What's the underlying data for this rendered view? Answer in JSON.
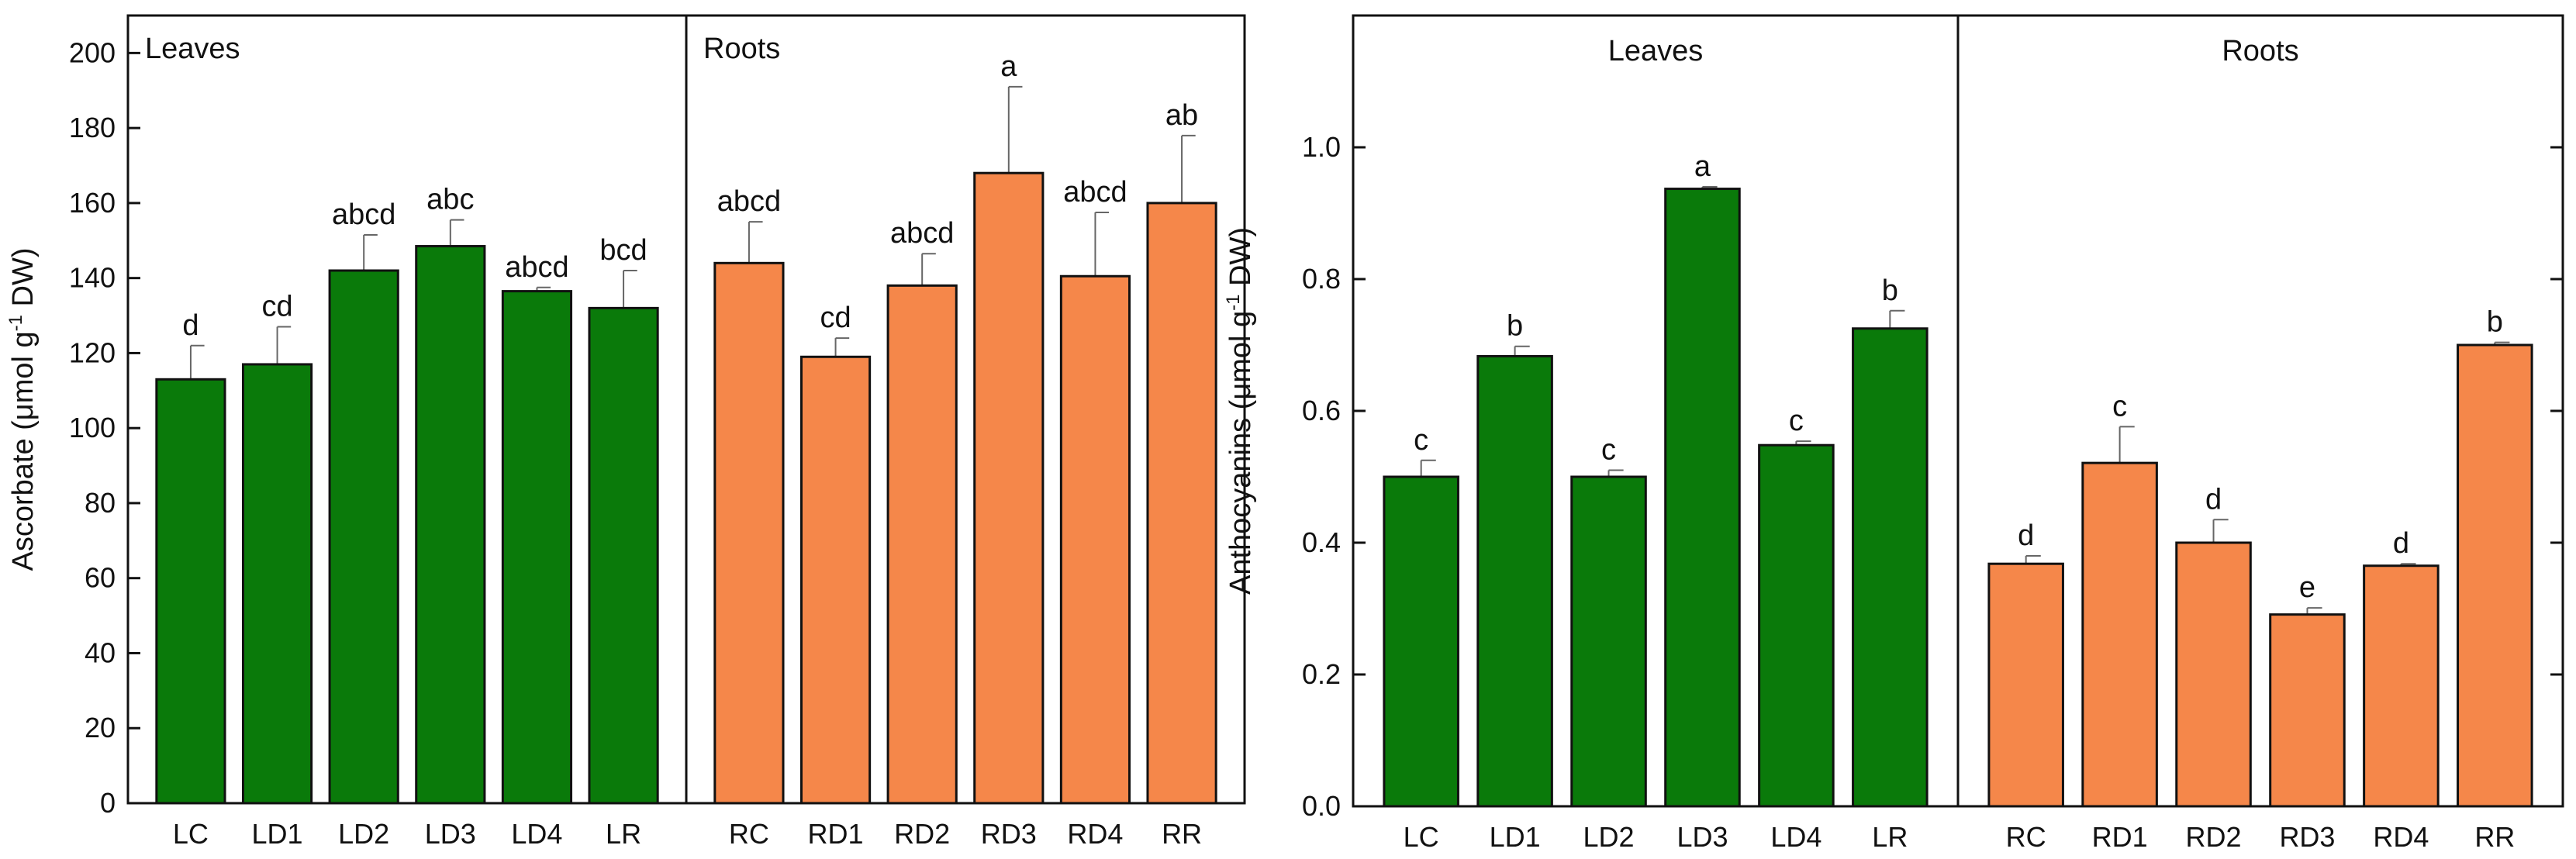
{
  "chart_data": [
    {
      "type": "bar",
      "ylabel": "Ascorbate (μmol g⁻¹ DW)",
      "ylabel_parts": {
        "before": "Ascorbate (μmol g",
        "superscript": "-1",
        "after": " DW)"
      },
      "ylim": [
        0,
        210
      ],
      "yticks": [
        0,
        20,
        40,
        60,
        80,
        100,
        120,
        140,
        160,
        180,
        200
      ],
      "ytick_labels": [
        "0",
        "20",
        "40",
        "60",
        "80",
        "100",
        "120",
        "140",
        "160",
        "180",
        "200"
      ],
      "groups": [
        {
          "label": "Leaves",
          "color": "#0a7a0a",
          "categories": [
            "LC",
            "LD1",
            "LD2",
            "LD3",
            "LD4",
            "LR"
          ],
          "values": [
            113,
            117,
            142,
            148.5,
            136.5,
            132
          ],
          "errors": [
            9,
            10,
            9.5,
            7,
            1,
            10
          ],
          "letters": [
            "d",
            "cd",
            "abcd",
            "abc",
            "abcd",
            "bcd"
          ]
        },
        {
          "label": "Roots",
          "color": "#f5874a",
          "categories": [
            "RC",
            "RD1",
            "RD2",
            "RD3",
            "RD4",
            "RR"
          ],
          "values": [
            144,
            119,
            138,
            168,
            140.5,
            160
          ],
          "errors": [
            11,
            5,
            8.5,
            23,
            17,
            18
          ],
          "letters": [
            "abcd",
            "cd",
            "abcd",
            "a",
            "abcd",
            "ab"
          ]
        }
      ]
    },
    {
      "type": "bar",
      "ylabel": "Anthocyanins (μmol g⁻¹ DW)",
      "ylabel_parts": {
        "before": "Anthocyanins (μmol g",
        "superscript": "-1",
        "after": " DW)"
      },
      "ylim": [
        0,
        1.2
      ],
      "yticks": [
        0,
        0.2,
        0.4,
        0.6,
        0.8,
        1.0
      ],
      "ytick_labels": [
        "0.0",
        "0.2",
        "0.4",
        "0.6",
        "0.8",
        "1.0"
      ],
      "groups": [
        {
          "label": "Leaves",
          "color": "#0a7a0a",
          "categories": [
            "LC",
            "LD1",
            "LD2",
            "LD3",
            "LD4",
            "LR"
          ],
          "values": [
            0.5,
            0.683,
            0.5,
            0.937,
            0.548,
            0.725
          ],
          "errors": [
            0.025,
            0.015,
            0.01,
            0.003,
            0.006,
            0.027
          ],
          "letters": [
            "c",
            "b",
            "c",
            "a",
            "c",
            "b"
          ]
        },
        {
          "label": "Roots",
          "color": "#f5874a",
          "categories": [
            "RC",
            "RD1",
            "RD2",
            "RD3",
            "RD4",
            "RR"
          ],
          "values": [
            0.368,
            0.521,
            0.4,
            0.291,
            0.365,
            0.7
          ],
          "errors": [
            0.012,
            0.055,
            0.035,
            0.01,
            0.003,
            0.004
          ],
          "letters": [
            "d",
            "c",
            "d",
            "e",
            "d",
            "b"
          ]
        }
      ]
    }
  ]
}
